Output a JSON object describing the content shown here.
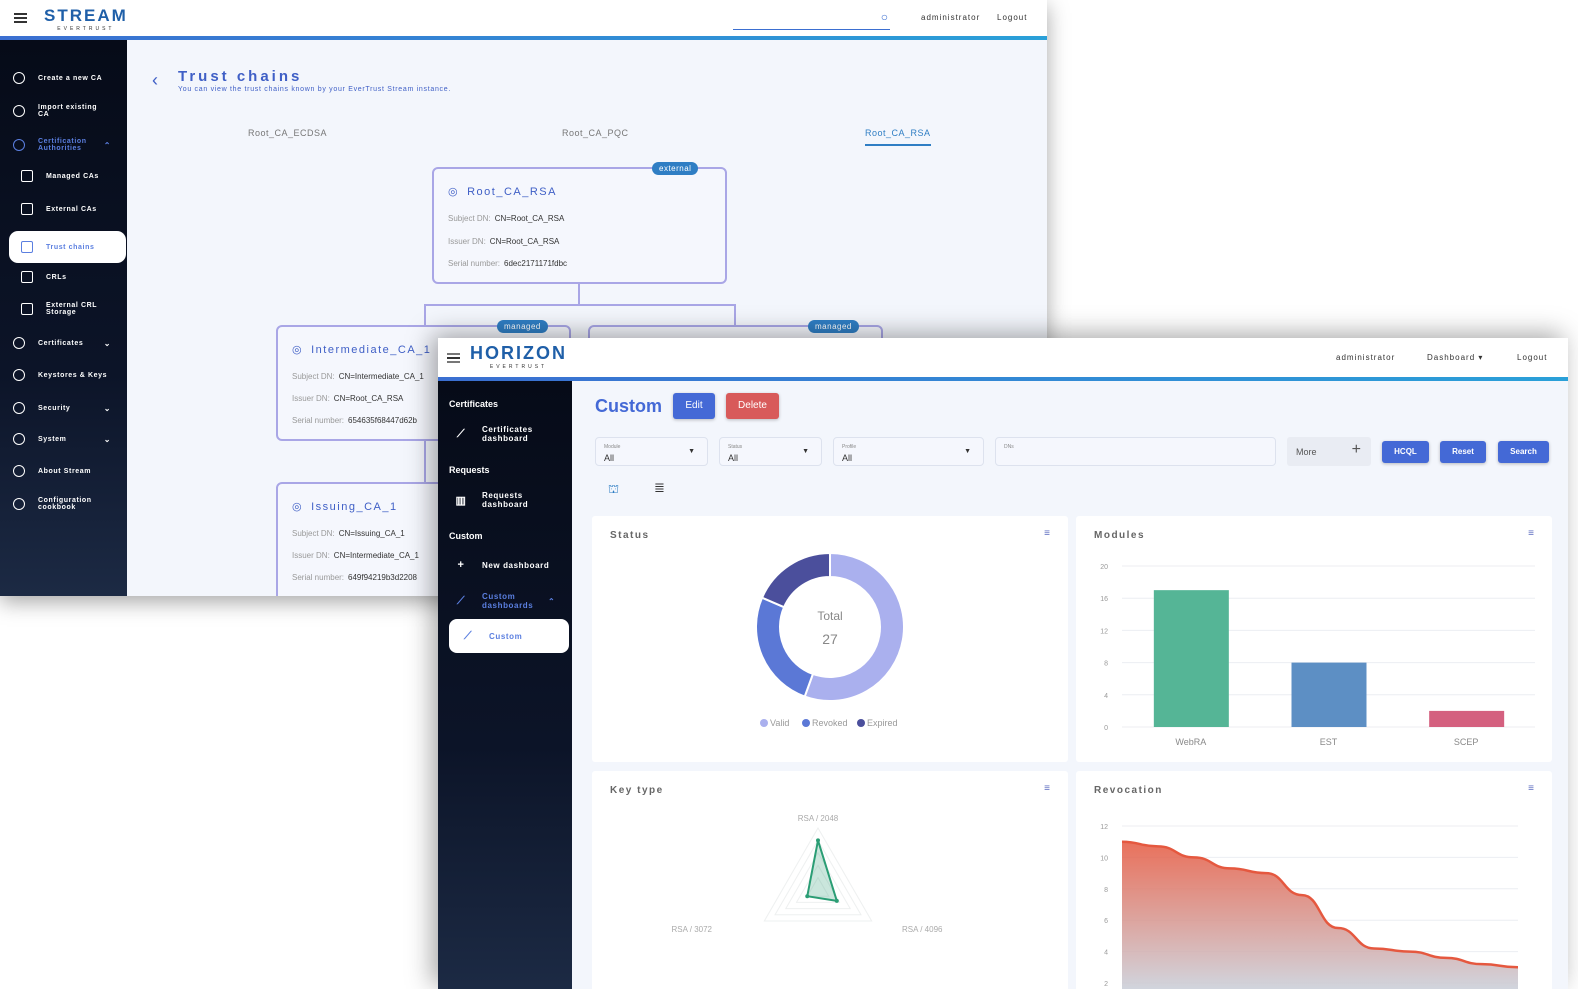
{
  "stream": {
    "logo": "STREAM",
    "logo_sub": "EVERTRUST",
    "user": "administrator",
    "logout": "Logout",
    "sidebar": [
      {
        "label": "Create a new CA",
        "icon": "plus-circle-icon"
      },
      {
        "label": "Import existing CA",
        "icon": "download-circle-icon"
      },
      {
        "label": "Certification Authorities",
        "icon": "circle-icon",
        "expanded": true
      },
      {
        "label": "Managed CAs",
        "icon": "wrench-icon"
      },
      {
        "label": "External CAs",
        "icon": "login-icon"
      },
      {
        "label": "Trust chains",
        "icon": "chain-icon",
        "active": true
      },
      {
        "label": "CRLs",
        "icon": "crl-icon"
      },
      {
        "label": "External CRL Storage",
        "icon": "storage-icon"
      },
      {
        "label": "Certificates",
        "icon": "badge-icon"
      },
      {
        "label": "Keystores & Keys",
        "icon": "key-icon"
      },
      {
        "label": "Security",
        "icon": "shield-icon"
      },
      {
        "label": "System",
        "icon": "gear-icon"
      },
      {
        "label": "About Stream",
        "icon": "help-icon"
      },
      {
        "label": "Configuration cookbook",
        "icon": "book-icon"
      }
    ],
    "page_title": "Trust chains",
    "page_subtitle": "You can view the trust chains known by your EverTrust Stream instance.",
    "tabs": [
      "Root_CA_ECDSA",
      "Root_CA_PQC",
      "Root_CA_RSA"
    ],
    "active_tab": "Root_CA_RSA",
    "labels": {
      "subject": "Subject DN:",
      "issuer": "Issuer DN:",
      "serial": "Serial number:"
    },
    "nodes": [
      {
        "name": "Root_CA_RSA",
        "badge": "external",
        "subject": "CN=Root_CA_RSA",
        "issuer": "CN=Root_CA_RSA",
        "serial": "6dec2171171fdbc"
      },
      {
        "name": "Intermediate_CA_1",
        "badge": "managed",
        "subject": "CN=Intermediate_CA_1",
        "issuer": "CN=Root_CA_RSA",
        "serial": "654635f68447d62b"
      },
      {
        "name": "",
        "badge": "managed"
      },
      {
        "name": "Issuing_CA_1",
        "subject": "CN=Issuing_CA_1",
        "issuer": "CN=Intermediate_CA_1",
        "serial": "649f94219b3d2208"
      }
    ]
  },
  "horizon": {
    "logo": "HORIZON",
    "logo_sub": "EVERTRUST",
    "user": "administrator",
    "menu": "Dashboard",
    "logout": "Logout",
    "sidebar": {
      "sections": [
        "Certificates",
        "Requests",
        "Custom"
      ],
      "items": [
        {
          "label": "Certificates dashboard",
          "icon": "line-chart-icon"
        },
        {
          "label": "Requests dashboard",
          "icon": "bar-chart-icon"
        },
        {
          "label": "New dashboard",
          "icon": "plus-icon"
        },
        {
          "label": "Custom dashboards",
          "icon": "line-chart-icon",
          "expanded": true
        },
        {
          "label": "Custom",
          "icon": "line-chart-icon",
          "active": true
        }
      ]
    },
    "page_title": "Custom",
    "edit": "Edit",
    "delete": "Delete",
    "filters": [
      {
        "label": "Module",
        "value": "All"
      },
      {
        "label": "Status",
        "value": "All"
      },
      {
        "label": "Profile",
        "value": "All"
      },
      {
        "label": "DNs",
        "value": ""
      }
    ],
    "more": "More",
    "hcql": "HCQL",
    "reset": "Reset",
    "search": "Search",
    "colors": {
      "primary": "#4469d6",
      "danger": "#d85a5a"
    }
  },
  "chart_data": [
    {
      "type": "pie",
      "title": "Status",
      "center_label": "Total",
      "center_value": "27",
      "categories": [
        "Valid",
        "Revoked",
        "Expired"
      ],
      "values": [
        15,
        7,
        5
      ],
      "colors": [
        "#aab0ee",
        "#5b78d6",
        "#4b4f9c"
      ],
      "legend": "bottom"
    },
    {
      "type": "bar",
      "title": "Modules",
      "categories": [
        "WebRA",
        "EST",
        "SCEP"
      ],
      "values": [
        17,
        8,
        2
      ],
      "colors": [
        "#55b596",
        "#5d8fc4",
        "#d4607f"
      ],
      "ylim": [
        0,
        20
      ],
      "yticks": [
        0,
        4,
        8,
        12,
        16,
        20
      ],
      "grid": true
    },
    {
      "type": "radar",
      "title": "Key type",
      "categories": [
        "RSA / 2048",
        "RSA / 4096",
        "RSA / 3072"
      ],
      "values": [
        16,
        7,
        4
      ],
      "max": 20,
      "color": "#2a9d74"
    },
    {
      "type": "area",
      "title": "Revocation",
      "values": [
        11,
        10.7,
        10,
        9.3,
        9,
        7.6,
        5.5,
        4.2,
        4,
        3.6,
        3.2,
        3
      ],
      "yticks": [
        2,
        4,
        6,
        8,
        10,
        12
      ],
      "ylim": [
        2,
        12
      ],
      "color": "#e5583f",
      "grid": true
    }
  ]
}
